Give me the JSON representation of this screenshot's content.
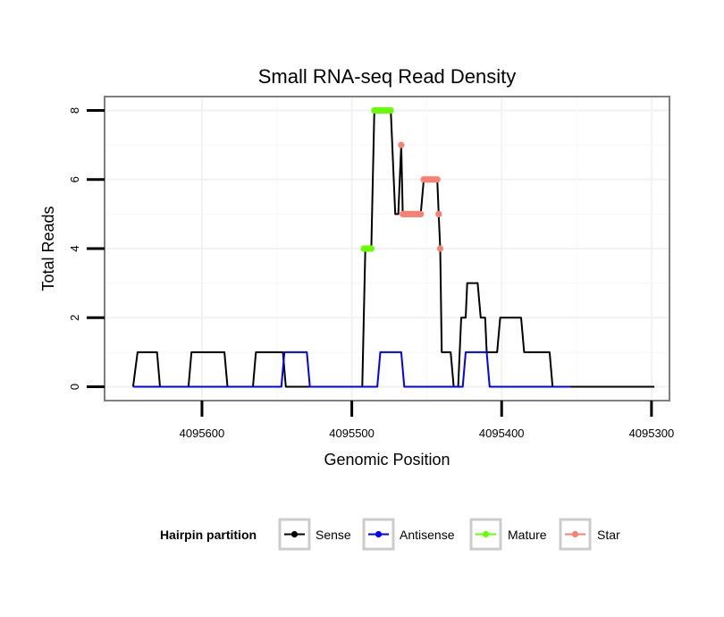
{
  "chart_data": {
    "type": "line",
    "title": "Small RNA-seq Read Density",
    "xlabel": "Genomic Position",
    "ylabel": "Total Reads",
    "x_reversed": true,
    "xlim": [
      4095665,
      4095288
    ],
    "ylim": [
      -0.4,
      8.4
    ],
    "x_ticks": [
      4095600,
      4095500,
      4095400,
      4095300
    ],
    "x_tick_labels": [
      "4095600",
      "4095500",
      "4095400",
      "4095300"
    ],
    "y_ticks": [
      0,
      2,
      4,
      6,
      8
    ],
    "y_tick_labels": [
      "0",
      "2",
      "4",
      "6",
      "8"
    ],
    "grid": true,
    "legend": {
      "title": "Hairpin partition",
      "position": "bottom",
      "entries": [
        {
          "label": "Sense",
          "color": "#000000"
        },
        {
          "label": "Antisense",
          "color": "#0000ff"
        },
        {
          "label": "Mature",
          "color": "#66ff00"
        },
        {
          "label": "Star",
          "color": "#fa8072"
        }
      ]
    },
    "series": [
      {
        "name": "Sense",
        "color": "#000000",
        "style": "line",
        "points": [
          [
            4095646,
            0
          ],
          [
            4095643,
            1
          ],
          [
            4095630,
            1
          ],
          [
            4095628,
            0
          ],
          [
            4095609,
            0
          ],
          [
            4095607,
            1
          ],
          [
            4095585,
            1
          ],
          [
            4095583,
            0
          ],
          [
            4095566,
            0
          ],
          [
            4095564,
            1
          ],
          [
            4095546,
            1
          ],
          [
            4095544,
            0
          ],
          [
            4095493,
            0
          ],
          [
            4095491,
            4
          ],
          [
            4095487,
            4
          ],
          [
            4095485,
            8
          ],
          [
            4095474,
            8
          ],
          [
            4095471,
            5
          ],
          [
            4095469,
            5
          ],
          [
            4095467,
            7
          ],
          [
            4095466,
            5
          ],
          [
            4095454,
            5
          ],
          [
            4095452,
            6
          ],
          [
            4095443,
            6
          ],
          [
            4095442,
            5
          ],
          [
            4095441,
            4
          ],
          [
            4095440,
            1
          ],
          [
            4095434,
            1
          ],
          [
            4095432,
            0
          ],
          [
            4095429,
            0
          ],
          [
            4095427,
            2
          ],
          [
            4095424,
            2
          ],
          [
            4095423,
            3
          ],
          [
            4095416,
            3
          ],
          [
            4095414,
            2
          ],
          [
            4095411,
            2
          ],
          [
            4095410,
            1
          ],
          [
            4095403,
            1
          ],
          [
            4095401,
            2
          ],
          [
            4095387,
            2
          ],
          [
            4095385,
            1
          ],
          [
            4095368,
            1
          ],
          [
            4095366,
            0
          ],
          [
            4095298,
            0
          ]
        ]
      },
      {
        "name": "Antisense",
        "color": "#0000ff",
        "style": "line",
        "points": [
          [
            4095646,
            0
          ],
          [
            4095547,
            0
          ],
          [
            4095545,
            1
          ],
          [
            4095530,
            1
          ],
          [
            4095528,
            0
          ],
          [
            4095483,
            0
          ],
          [
            4095481,
            1
          ],
          [
            4095467,
            1
          ],
          [
            4095465,
            0
          ],
          [
            4095426,
            0
          ],
          [
            4095424,
            1
          ],
          [
            4095410,
            1
          ],
          [
            4095408,
            0
          ],
          [
            4095354,
            0
          ]
        ]
      },
      {
        "name": "Mature",
        "color": "#66ff00",
        "style": "points",
        "points": [
          [
            4095492,
            4
          ],
          [
            4095491,
            4
          ],
          [
            4095490,
            4
          ],
          [
            4095489,
            4
          ],
          [
            4095488,
            4
          ],
          [
            4095487,
            4
          ],
          [
            4095485,
            8
          ],
          [
            4095484,
            8
          ],
          [
            4095483,
            8
          ],
          [
            4095482,
            8
          ],
          [
            4095481,
            8
          ],
          [
            4095480,
            8
          ],
          [
            4095479,
            8
          ],
          [
            4095478,
            8
          ],
          [
            4095477,
            8
          ],
          [
            4095476,
            8
          ],
          [
            4095475,
            8
          ],
          [
            4095474,
            8
          ]
        ]
      },
      {
        "name": "Star",
        "color": "#fa8072",
        "style": "points",
        "points": [
          [
            4095467,
            7
          ],
          [
            4095466,
            5
          ],
          [
            4095465,
            5
          ],
          [
            4095464,
            5
          ],
          [
            4095463,
            5
          ],
          [
            4095462,
            5
          ],
          [
            4095461,
            5
          ],
          [
            4095460,
            5
          ],
          [
            4095459,
            5
          ],
          [
            4095458,
            5
          ],
          [
            4095457,
            5
          ],
          [
            4095456,
            5
          ],
          [
            4095455,
            5
          ],
          [
            4095454,
            5
          ],
          [
            4095452,
            6
          ],
          [
            4095451,
            6
          ],
          [
            4095450,
            6
          ],
          [
            4095449,
            6
          ],
          [
            4095448,
            6
          ],
          [
            4095447,
            6
          ],
          [
            4095446,
            6
          ],
          [
            4095445,
            6
          ],
          [
            4095444,
            6
          ],
          [
            4095443,
            6
          ],
          [
            4095442,
            5
          ],
          [
            4095441,
            4
          ]
        ]
      }
    ]
  }
}
